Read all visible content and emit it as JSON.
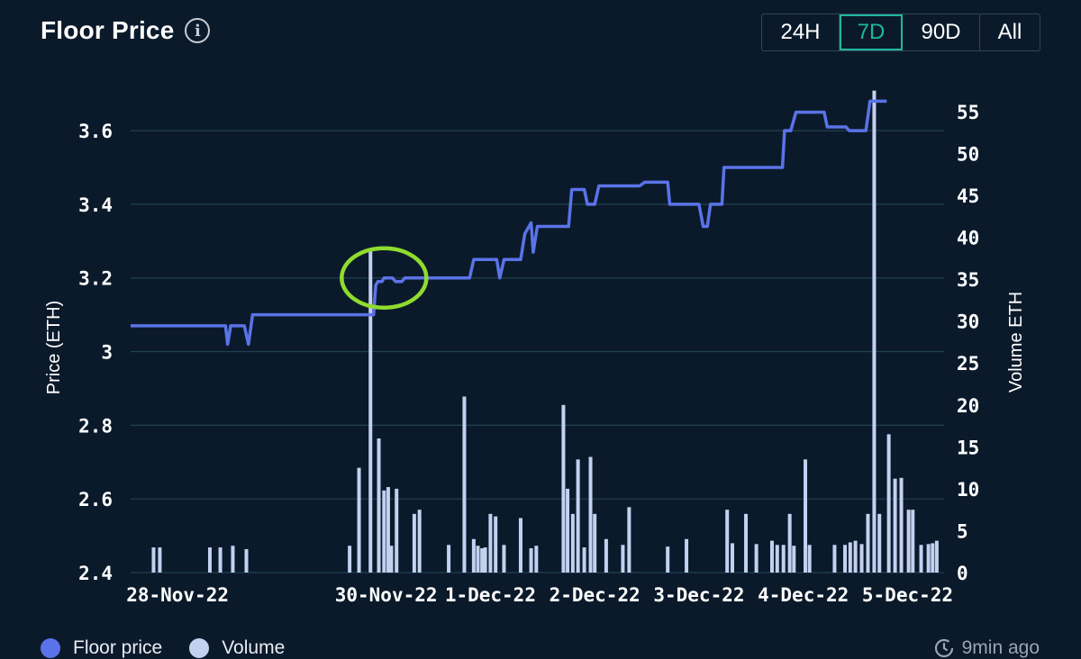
{
  "header": {
    "title": "Floor Price",
    "info_icon": "info-icon"
  },
  "range_tabs": [
    {
      "label": "24H",
      "active": false
    },
    {
      "label": "7D",
      "active": true
    },
    {
      "label": "90D",
      "active": false
    },
    {
      "label": "All",
      "active": false
    }
  ],
  "colors": {
    "background": "#0b1a2b",
    "floor_price": "#5b73e8",
    "volume": "#c3d0f0",
    "highlight_circle": "#8fdc2e",
    "active_tab": "#1fb7a0"
  },
  "legend": [
    {
      "label": "Floor price",
      "color": "#5b73e8"
    },
    {
      "label": "Volume",
      "color": "#c3d0f0"
    }
  ],
  "updated": {
    "icon": "clock-refresh-icon",
    "text": "9min ago"
  },
  "chart_data": {
    "type": "line+bar",
    "ylabel_left": "Price (ETH)",
    "ylabel_right": "Volume ETH",
    "y_left_ticks": [
      "2.4",
      "2.6",
      "2.8",
      "3",
      "3.2",
      "3.4",
      "3.6"
    ],
    "y_left_range": [
      2.4,
      3.72
    ],
    "y_right_ticks": [
      "0",
      "5",
      "10",
      "15",
      "20",
      "25",
      "30",
      "35",
      "40",
      "45",
      "50",
      "55"
    ],
    "y_right_range": [
      0,
      58
    ],
    "x_ticks": [
      "28-Nov-22",
      "30-Nov-22",
      "1-Dec-22",
      "2-Dec-22",
      "3-Dec-22",
      "4-Dec-22",
      "5-Dec-22"
    ],
    "x_tick_days": [
      0,
      2,
      3,
      4,
      5,
      6,
      7
    ],
    "x_range": [
      -0.45,
      7.35
    ],
    "annotation": "highlight circle around 30-Nov-22 price jump",
    "annotation_center": {
      "x_day": 1.98,
      "price": 3.2
    },
    "series": [
      {
        "name": "Floor price",
        "kind": "line",
        "points": [
          [
            -0.45,
            3.07
          ],
          [
            0.46,
            3.07
          ],
          [
            0.48,
            3.02
          ],
          [
            0.51,
            3.07
          ],
          [
            0.64,
            3.07
          ],
          [
            0.68,
            3.02
          ],
          [
            0.72,
            3.1
          ],
          [
            1.88,
            3.1
          ],
          [
            1.9,
            3.18
          ],
          [
            1.92,
            3.19
          ],
          [
            1.96,
            3.19
          ],
          [
            1.98,
            3.2
          ],
          [
            2.06,
            3.2
          ],
          [
            2.09,
            3.19
          ],
          [
            2.15,
            3.19
          ],
          [
            2.18,
            3.2
          ],
          [
            2.22,
            3.2
          ],
          [
            2.8,
            3.2
          ],
          [
            2.84,
            3.25
          ],
          [
            3.06,
            3.25
          ],
          [
            3.09,
            3.2
          ],
          [
            3.13,
            3.25
          ],
          [
            3.29,
            3.25
          ],
          [
            3.33,
            3.32
          ],
          [
            3.39,
            3.35
          ],
          [
            3.41,
            3.27
          ],
          [
            3.45,
            3.34
          ],
          [
            3.75,
            3.34
          ],
          [
            3.78,
            3.44
          ],
          [
            3.9,
            3.44
          ],
          [
            3.93,
            3.4
          ],
          [
            4.0,
            3.4
          ],
          [
            4.04,
            3.45
          ],
          [
            4.43,
            3.45
          ],
          [
            4.48,
            3.46
          ],
          [
            4.7,
            3.46
          ],
          [
            4.72,
            3.4
          ],
          [
            5.0,
            3.4
          ],
          [
            5.04,
            3.34
          ],
          [
            5.08,
            3.34
          ],
          [
            5.11,
            3.4
          ],
          [
            5.22,
            3.4
          ],
          [
            5.24,
            3.5
          ],
          [
            5.8,
            3.5
          ],
          [
            5.82,
            3.6
          ],
          [
            5.88,
            3.6
          ],
          [
            5.93,
            3.65
          ],
          [
            6.2,
            3.65
          ],
          [
            6.23,
            3.61
          ],
          [
            6.41,
            3.61
          ],
          [
            6.44,
            3.6
          ],
          [
            6.6,
            3.6
          ],
          [
            6.64,
            3.68
          ],
          [
            6.8,
            3.68
          ]
        ]
      },
      {
        "name": "Volume",
        "kind": "bar",
        "bars": [
          [
            -0.23,
            3
          ],
          [
            -0.17,
            3
          ],
          [
            0.31,
            3
          ],
          [
            0.41,
            3
          ],
          [
            0.53,
            3.2
          ],
          [
            0.66,
            2.8
          ],
          [
            1.65,
            3.2
          ],
          [
            1.74,
            12.5
          ],
          [
            1.85,
            38.5
          ],
          [
            1.93,
            16
          ],
          [
            1.98,
            9.8
          ],
          [
            2.02,
            10.2
          ],
          [
            2.05,
            3.2
          ],
          [
            2.1,
            10
          ],
          [
            2.27,
            7
          ],
          [
            2.32,
            7.5
          ],
          [
            2.6,
            3.3
          ],
          [
            2.75,
            21
          ],
          [
            2.84,
            4
          ],
          [
            2.88,
            3.2
          ],
          [
            2.92,
            2.9
          ],
          [
            2.95,
            3
          ],
          [
            3.0,
            7
          ],
          [
            3.05,
            6.7
          ],
          [
            3.13,
            3.3
          ],
          [
            3.29,
            6.5
          ],
          [
            3.39,
            2.9
          ],
          [
            3.44,
            3.2
          ],
          [
            3.7,
            20
          ],
          [
            3.74,
            10
          ],
          [
            3.79,
            7
          ],
          [
            3.84,
            13.5
          ],
          [
            3.9,
            3
          ],
          [
            3.96,
            13.8
          ],
          [
            4.0,
            7
          ],
          [
            4.11,
            4
          ],
          [
            4.27,
            3.3
          ],
          [
            4.33,
            7.8
          ],
          [
            4.7,
            3.1
          ],
          [
            4.88,
            4
          ],
          [
            5.27,
            7.5
          ],
          [
            5.32,
            3.5
          ],
          [
            5.45,
            7
          ],
          [
            5.55,
            3.4
          ],
          [
            5.7,
            3.8
          ],
          [
            5.75,
            3.3
          ],
          [
            5.81,
            3.3
          ],
          [
            5.87,
            7
          ],
          [
            5.91,
            3.2
          ],
          [
            6.02,
            13.5
          ],
          [
            6.06,
            3.3
          ],
          [
            6.3,
            3.3
          ],
          [
            6.4,
            3.3
          ],
          [
            6.45,
            3.6
          ],
          [
            6.5,
            3.8
          ],
          [
            6.56,
            3.4
          ],
          [
            6.62,
            7
          ],
          [
            6.68,
            57.5
          ],
          [
            6.73,
            7
          ],
          [
            6.82,
            16.5
          ],
          [
            6.88,
            11.2
          ],
          [
            6.94,
            11.3
          ],
          [
            7.01,
            7.5
          ],
          [
            7.05,
            7.5
          ],
          [
            7.13,
            3.3
          ],
          [
            7.2,
            3.4
          ],
          [
            7.24,
            3.5
          ],
          [
            7.28,
            3.8
          ]
        ]
      }
    ]
  }
}
